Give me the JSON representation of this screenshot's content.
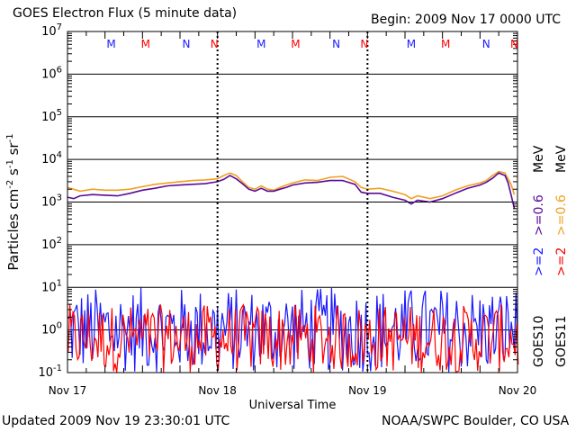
{
  "header": {
    "title": "GOES Electron Flux (5 minute data)",
    "begin": "Begin: 2009 Nov 17 0000 UTC"
  },
  "footer": {
    "updated": "Updated 2009 Nov 19 23:30:01 UTC",
    "source": "NOAA/SWPC Boulder, CO USA"
  },
  "colors": {
    "goes10_06": "#5a0a9a",
    "goes11_06": "#f0a020",
    "goes10_2": "#1a1aff",
    "goes11_2": "#ff0000",
    "noon_m_blue": "#1a1aff",
    "noon_m_red": "#ff0000",
    "axis": "#000000"
  },
  "chart_data": {
    "type": "line",
    "title": "GOES Electron Flux (5 minute data)",
    "xlabel": "Universal Time",
    "ylabel": "Particles cm-2 s-1 sr-1",
    "yscale": "log",
    "ylim_exp": [
      -1,
      7
    ],
    "y_tick_exponents": [
      -1,
      0,
      1,
      2,
      3,
      4,
      5,
      6,
      7
    ],
    "xlim_hours": [
      0,
      72
    ],
    "x_tick_labels": [
      {
        "hours": 0,
        "label": "Nov 17"
      },
      {
        "hours": 24,
        "label": "Nov 18"
      },
      {
        "hours": 48,
        "label": "Nov 19"
      },
      {
        "hours": 72,
        "label": "Nov 20"
      }
    ],
    "threshold_value": 1000,
    "local_time_markers": [
      {
        "hours": 7,
        "label": "M",
        "sat": "GOES10"
      },
      {
        "hours": 12.5,
        "label": "M",
        "sat": "GOES11"
      },
      {
        "hours": 19,
        "label": "N",
        "sat": "GOES10"
      },
      {
        "hours": 23.5,
        "label": "N",
        "sat": "GOES11"
      },
      {
        "hours": 31,
        "label": "M",
        "sat": "GOES10"
      },
      {
        "hours": 36.5,
        "label": "M",
        "sat": "GOES11"
      },
      {
        "hours": 43,
        "label": "N",
        "sat": "GOES10"
      },
      {
        "hours": 47.5,
        "label": "N",
        "sat": "GOES11"
      },
      {
        "hours": 55,
        "label": "M",
        "sat": "GOES10"
      },
      {
        "hours": 60.5,
        "label": "M",
        "sat": "GOES11"
      },
      {
        "hours": 67,
        "label": "N",
        "sat": "GOES10"
      },
      {
        "hours": 71.5,
        "label": "N",
        "sat": "GOES11"
      }
    ],
    "legend": {
      "energy_a": ">=2",
      "energy_b": ">=0.6",
      "energy_a_color": "#1a1aff",
      "energy_b_color": "#5a0a9a",
      "energy_c": ">=2",
      "energy_d": ">=0.6",
      "energy_c_color": "#ff0000",
      "energy_d_color": "#f0a020",
      "unit": "MeV",
      "sat_a": "GOES10",
      "sat_b": "GOES11"
    },
    "series": [
      {
        "name": "GOES11 >=0.6 MeV",
        "color": "#f0a020",
        "x": [
          0,
          2,
          4,
          6,
          8,
          10,
          12,
          14,
          16,
          18,
          20,
          22,
          24,
          25,
          26,
          27,
          28,
          29,
          30,
          31,
          32,
          33,
          34,
          35,
          36,
          38,
          40,
          42,
          44,
          46,
          47,
          48,
          50,
          52,
          54,
          55,
          56,
          58,
          60,
          62,
          64,
          66,
          67,
          68,
          69,
          70,
          70.5,
          71,
          71.5
        ],
        "values": [
          2200,
          1800,
          2000,
          1900,
          1900,
          2000,
          2300,
          2600,
          2800,
          3000,
          3200,
          3300,
          3500,
          4200,
          4800,
          4200,
          3000,
          2200,
          2000,
          2400,
          2000,
          1900,
          2200,
          2500,
          2800,
          3300,
          3200,
          3800,
          4000,
          3000,
          2200,
          2000,
          2100,
          1800,
          1500,
          1200,
          1400,
          1200,
          1400,
          1900,
          2400,
          2800,
          3200,
          4200,
          5200,
          4800,
          3500,
          2500,
          1500
        ]
      },
      {
        "name": "GOES10 >=0.6 MeV",
        "color": "#5a0a9a",
        "x": [
          0,
          1,
          2,
          4,
          6,
          8,
          10,
          12,
          14,
          16,
          18,
          20,
          22,
          24,
          25,
          26,
          27,
          28,
          29,
          30,
          31,
          32,
          33,
          34,
          35,
          36,
          38,
          40,
          42,
          44,
          46,
          47,
          48,
          50,
          52,
          54,
          55,
          56,
          58,
          60,
          62,
          64,
          66,
          67,
          68,
          69,
          70,
          70.5,
          71,
          71.5
        ],
        "values": [
          1300,
          1200,
          1400,
          1500,
          1450,
          1400,
          1600,
          1900,
          2100,
          2400,
          2500,
          2600,
          2700,
          3000,
          3400,
          4200,
          3500,
          2700,
          2000,
          1800,
          2100,
          1800,
          1800,
          2000,
          2200,
          2500,
          2800,
          2900,
          3200,
          3200,
          2600,
          1700,
          1600,
          1600,
          1300,
          1100,
          900,
          1100,
          1000,
          1200,
          1600,
          2100,
          2500,
          2900,
          3600,
          4800,
          4200,
          2800,
          1400,
          700
        ]
      }
    ]
  }
}
